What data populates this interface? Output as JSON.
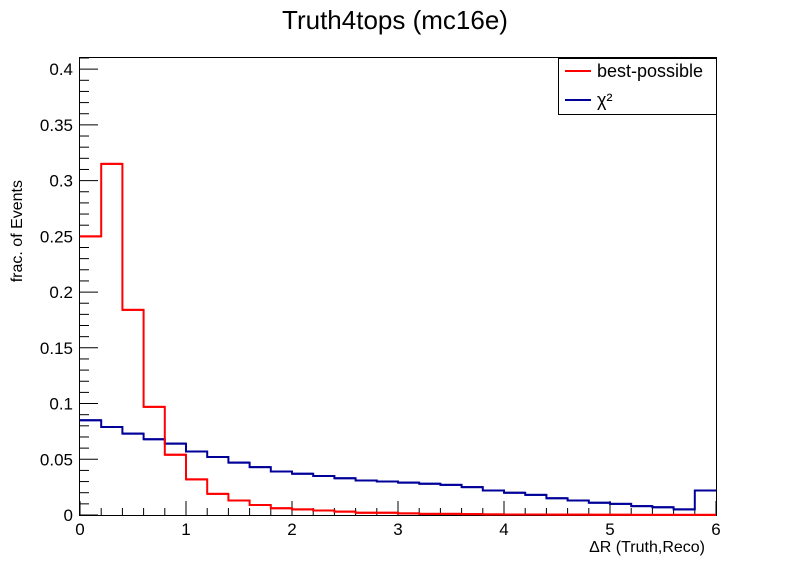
{
  "chart_data": {
    "type": "histogram",
    "title": "Truth4tops (mc16e)",
    "xlabel": "ΔR (Truth,Reco)",
    "ylabel": "frac. of Events",
    "xlim": [
      0,
      6
    ],
    "ylim": [
      0,
      0.41
    ],
    "xticks": [
      "0",
      "1",
      "2",
      "3",
      "4",
      "5",
      "6"
    ],
    "yticks": [
      "0",
      "0.05",
      "0.1",
      "0.15",
      "0.2",
      "0.25",
      "0.3",
      "0.35",
      "0.4"
    ],
    "bin_width": 0.2,
    "legend_position": "top-right",
    "series": [
      {
        "name": "best-possible",
        "color": "#ff0000",
        "values": [
          0.25,
          0.315,
          0.184,
          0.097,
          0.054,
          0.032,
          0.019,
          0.013,
          0.009,
          0.006,
          0.005,
          0.004,
          0.003,
          0.002,
          0.002,
          0.0015,
          0.001,
          0.001,
          0.0008,
          0.0006,
          0.0005,
          0.0004,
          0.0003,
          0.0003,
          0.0002,
          0.0002,
          0.0001,
          0.0001,
          0.0001,
          0.0001
        ]
      },
      {
        "name": "χ²",
        "color": "#000099",
        "values": [
          0.085,
          0.079,
          0.073,
          0.068,
          0.064,
          0.057,
          0.052,
          0.047,
          0.043,
          0.039,
          0.037,
          0.035,
          0.033,
          0.031,
          0.03,
          0.029,
          0.028,
          0.027,
          0.025,
          0.022,
          0.02,
          0.018,
          0.015,
          0.013,
          0.011,
          0.01,
          0.008,
          0.007,
          0.005,
          0.022
        ]
      }
    ]
  }
}
